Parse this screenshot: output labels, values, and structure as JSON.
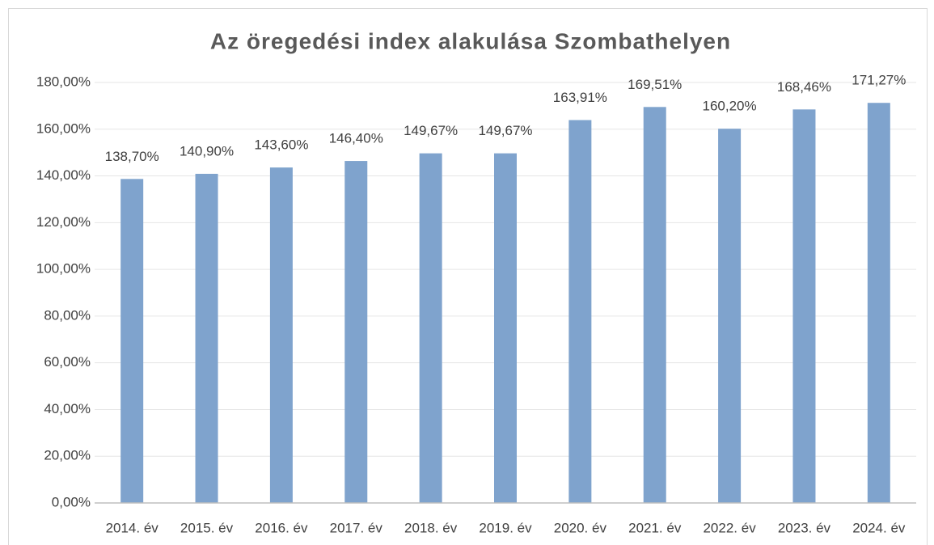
{
  "chart_data": {
    "type": "bar",
    "title": "Az öregedési index alakulása Szombathelyen",
    "categories": [
      "2014. év",
      "2015. év",
      "2016. év",
      "2017. év",
      "2018. év",
      "2019. év",
      "2020. év",
      "2021. év",
      "2022. év",
      "2023. év",
      "2024. év"
    ],
    "values": [
      138.7,
      140.9,
      143.6,
      146.4,
      149.67,
      149.67,
      163.91,
      169.51,
      160.2,
      168.46,
      171.27
    ],
    "value_labels": [
      "138,70%",
      "140,90%",
      "143,60%",
      "146,40%",
      "149,67%",
      "149,67%",
      "163,91%",
      "169,51%",
      "160,20%",
      "168,46%",
      "171,27%"
    ],
    "color": "#7fa3cd",
    "ylim": [
      0,
      180
    ],
    "yticks": [
      {
        "value": 0,
        "label": "0,00%"
      },
      {
        "value": 20,
        "label": "20,00%"
      },
      {
        "value": 40,
        "label": "40,00%"
      },
      {
        "value": 60,
        "label": "60,00%"
      },
      {
        "value": 80,
        "label": "80,00%"
      },
      {
        "value": 100,
        "label": "100,00%"
      },
      {
        "value": 120,
        "label": "120,00%"
      },
      {
        "value": 140,
        "label": "140,00%"
      },
      {
        "value": 160,
        "label": "160,00%"
      },
      {
        "value": 180,
        "label": "180,00%"
      }
    ],
    "grid": true
  }
}
